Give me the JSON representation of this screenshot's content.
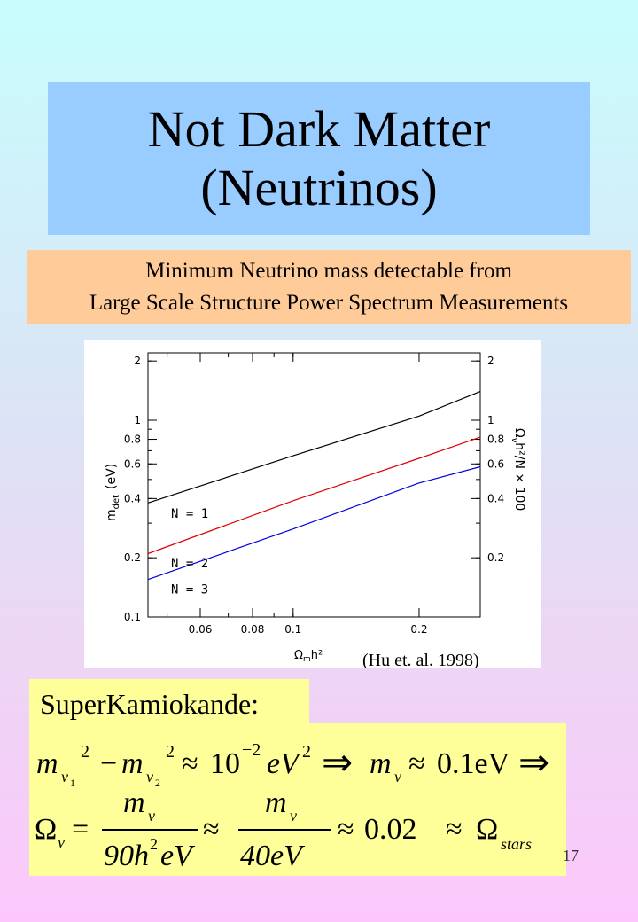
{
  "title": {
    "line1": "Not Dark Matter",
    "line2": "(Neutrinos)"
  },
  "subtitle": {
    "line1": "Minimum Neutrino mass detectable from",
    "line2": "Large Scale Structure Power Spectrum Measurements"
  },
  "figure": {
    "citation": "(Hu et. al. 1998)",
    "ylabel_left": "m",
    "ylabel_left_sub": "det",
    "ylabel_left_unit": "(eV)",
    "ylabel_right": "Ω",
    "ylabel_right_sub": "ν",
    "ylabel_right_rest": "h²/N × 100",
    "xlabel": "Ω",
    "xlabel_sub": "m",
    "xlabel_rest": "h²"
  },
  "chart_data": {
    "type": "line",
    "x_scale": "log",
    "y_scale": "log",
    "xlim": [
      0.045,
      0.28
    ],
    "ylim": [
      0.1,
      2.2
    ],
    "x_ticks_labeled": [
      "0.06",
      "0.08",
      "0.1",
      "0.2"
    ],
    "y_ticks_left": [
      "2",
      "1",
      "0.8",
      "0.6",
      "0.4",
      "0.2",
      "0.1"
    ],
    "y_ticks_right": [
      "2",
      "1",
      "0.8",
      "0.6",
      "0.4",
      "0.2"
    ],
    "series": [
      {
        "name": "N = 1",
        "color": "#000000",
        "x": [
          0.045,
          0.1,
          0.2,
          0.28
        ],
        "y": [
          0.38,
          0.66,
          1.05,
          1.4
        ]
      },
      {
        "name": "N = 2",
        "color": "#e00000",
        "x": [
          0.045,
          0.1,
          0.2,
          0.28
        ],
        "y": [
          0.21,
          0.39,
          0.64,
          0.82
        ]
      },
      {
        "name": "N = 3",
        "color": "#0000e0",
        "x": [
          0.045,
          0.1,
          0.2,
          0.28
        ],
        "y": [
          0.155,
          0.28,
          0.48,
          0.58
        ]
      }
    ]
  },
  "superk": {
    "label": "SuperKamiokande:"
  },
  "equations": {
    "m": "m",
    "nu": "ν",
    "one": "1",
    "two": "2",
    "sq": "2",
    "minus": "−",
    "approx": "≈",
    "ten": "10",
    "exp": "−2",
    "eV": "eV",
    "arrow": "⇒",
    "val1": "0.1eV",
    "omega": "Ω",
    "eq": "=",
    "den1": "90h",
    "den1b": "eV",
    "den2": "40eV",
    "val2": "0.02",
    "stars": "stars"
  },
  "page_number": "17"
}
